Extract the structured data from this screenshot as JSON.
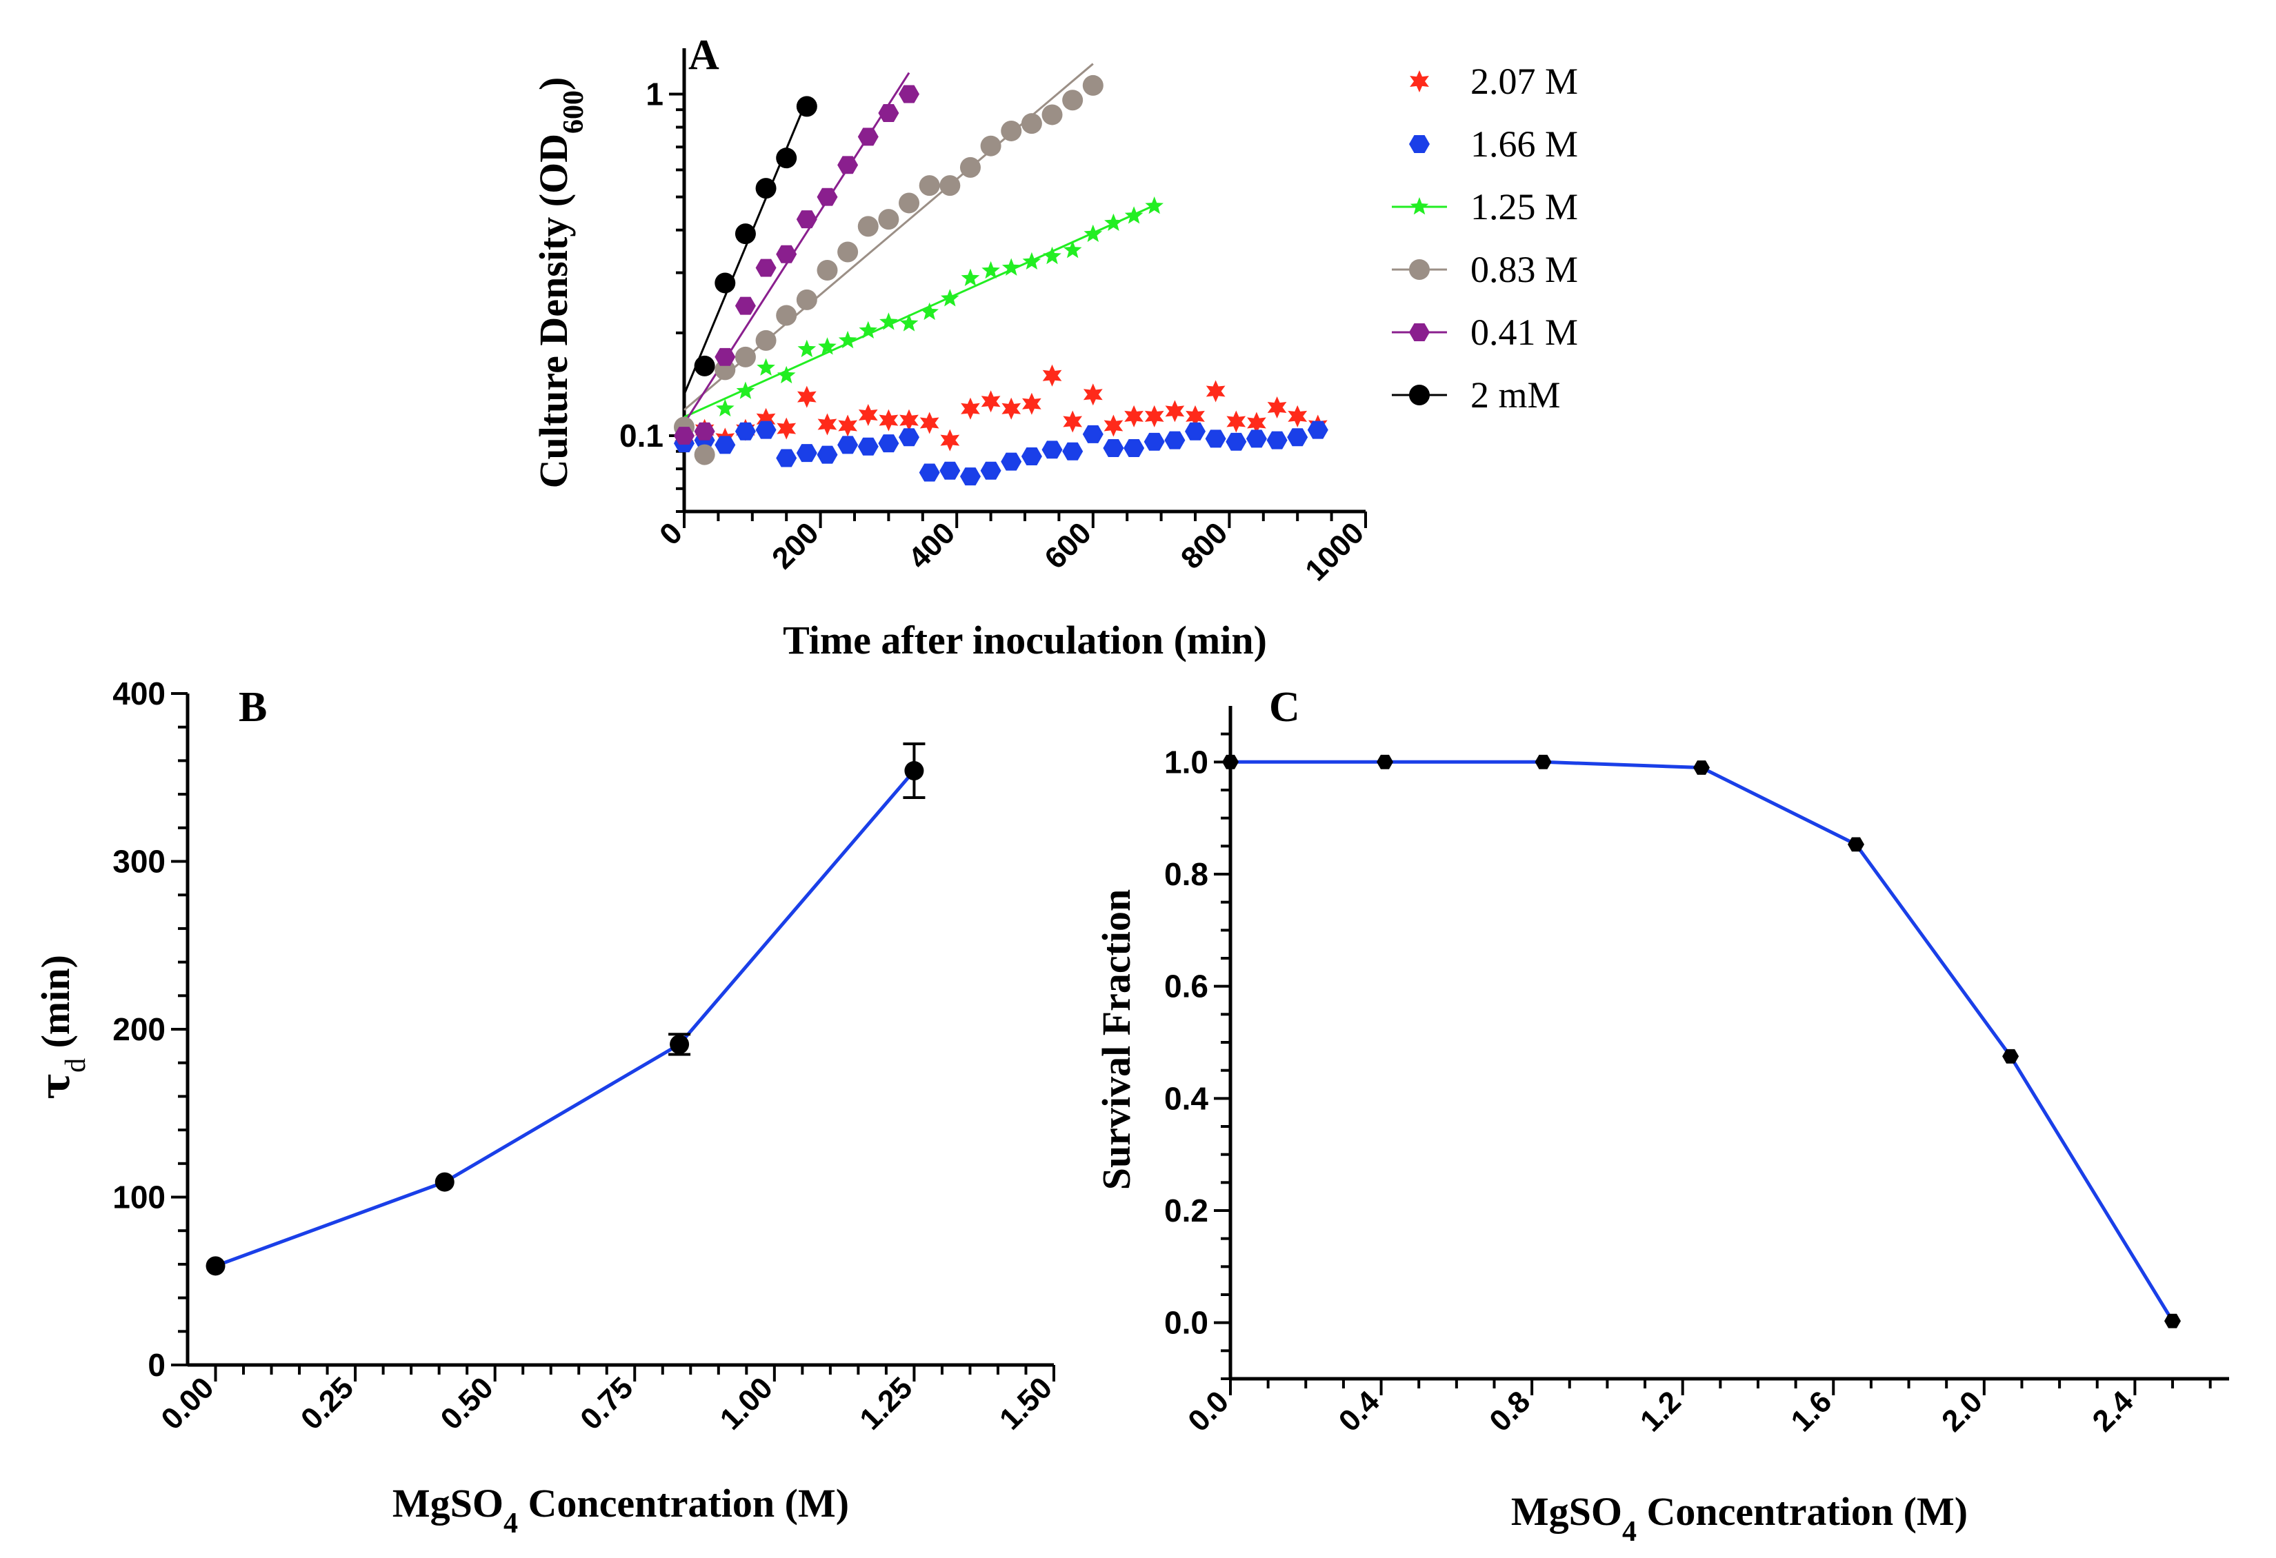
{
  "chart_data": [
    {
      "panel": "A",
      "type": "scatter",
      "yscale": "log",
      "xlabel": "Time after inoculation (min)",
      "ylabel_main": "Culture Density (OD",
      "ylabel_sub": "600",
      "ylabel_close": ")",
      "xlim": [
        0,
        1000
      ],
      "ylim": [
        0.06,
        1.3
      ],
      "xticks": [
        0,
        200,
        400,
        600,
        800,
        1000
      ],
      "yticks": [
        0.1,
        1
      ],
      "ytick_labels": [
        "0.1",
        "1"
      ],
      "series": [
        {
          "name": "2.07 M",
          "color": "#ff2a1a",
          "marker": "star",
          "fit": false,
          "x": [
            0,
            30,
            60,
            90,
            120,
            150,
            180,
            210,
            240,
            270,
            300,
            330,
            360,
            390,
            420,
            450,
            480,
            510,
            540,
            570,
            600,
            630,
            660,
            690,
            720,
            750,
            780,
            810,
            840,
            870,
            900,
            930
          ],
          "y": [
            0.1,
            0.104,
            0.098,
            0.104,
            0.112,
            0.105,
            0.13,
            0.108,
            0.107,
            0.115,
            0.111,
            0.111,
            0.109,
            0.097,
            0.12,
            0.126,
            0.12,
            0.124,
            0.15,
            0.11,
            0.132,
            0.107,
            0.114,
            0.114,
            0.118,
            0.114,
            0.135,
            0.11,
            0.109,
            0.121,
            0.114,
            0.107
          ]
        },
        {
          "name": "1.66 M",
          "color": "#1a3fe8",
          "marker": "hexagon",
          "fit": false,
          "x": [
            0,
            30,
            60,
            90,
            120,
            150,
            180,
            210,
            240,
            270,
            300,
            330,
            360,
            390,
            420,
            450,
            480,
            510,
            540,
            570,
            600,
            630,
            660,
            690,
            720,
            750,
            780,
            810,
            840,
            870,
            900,
            930
          ],
          "y": [
            0.095,
            0.097,
            0.094,
            0.103,
            0.104,
            0.086,
            0.089,
            0.088,
            0.094,
            0.093,
            0.095,
            0.099,
            0.078,
            0.079,
            0.076,
            0.079,
            0.084,
            0.087,
            0.091,
            0.09,
            0.101,
            0.092,
            0.092,
            0.096,
            0.097,
            0.103,
            0.098,
            0.096,
            0.098,
            0.097,
            0.099,
            0.104
          ]
        },
        {
          "name": "1.25 M",
          "color": "#22ee22",
          "marker": "star5",
          "fit": true,
          "x": [
            0,
            60,
            90,
            120,
            150,
            180,
            210,
            240,
            270,
            300,
            330,
            360,
            390,
            420,
            450,
            480,
            510,
            540,
            570,
            600,
            630,
            660,
            690
          ],
          "y": [
            0.105,
            0.12,
            0.135,
            0.158,
            0.15,
            0.179,
            0.182,
            0.19,
            0.203,
            0.215,
            0.213,
            0.23,
            0.252,
            0.289,
            0.304,
            0.31,
            0.323,
            0.335,
            0.349,
            0.389,
            0.419,
            0.44,
            0.47
          ]
        },
        {
          "name": "0.83 M",
          "color": "#9b8f86",
          "marker": "circle",
          "fit": true,
          "x": [
            0,
            30,
            60,
            90,
            120,
            150,
            180,
            210,
            240,
            270,
            300,
            330,
            360,
            390,
            420,
            450,
            480,
            510,
            540,
            570,
            600
          ],
          "y": [
            0.106,
            0.088,
            0.156,
            0.17,
            0.19,
            0.225,
            0.25,
            0.305,
            0.345,
            0.41,
            0.43,
            0.48,
            0.54,
            0.54,
            0.61,
            0.705,
            0.78,
            0.82,
            0.87,
            0.96,
            1.06
          ]
        },
        {
          "name": "0.41 M",
          "color": "#8a1f8e",
          "marker": "hexagon",
          "fit": true,
          "x": [
            0,
            30,
            60,
            90,
            120,
            150,
            180,
            210,
            240,
            270,
            300,
            330
          ],
          "y": [
            0.1,
            0.103,
            0.17,
            0.24,
            0.31,
            0.34,
            0.43,
            0.5,
            0.62,
            0.75,
            0.88,
            1.0
          ]
        },
        {
          "name": "2 mM",
          "color": "#000000",
          "marker": "circle",
          "fit": true,
          "x": [
            30,
            60,
            90,
            120,
            150,
            180
          ],
          "y": [
            0.16,
            0.28,
            0.39,
            0.53,
            0.65,
            0.92
          ]
        }
      ],
      "legend": [
        "2.07 M",
        "1.66 M",
        "1.25 M",
        "0.83 M",
        "0.41 M",
        "2 mM"
      ]
    },
    {
      "panel": "B",
      "type": "line",
      "xlabel_pre": "MgSO",
      "xlabel_sub": "4",
      "xlabel_post": " Concentration (M)",
      "ylabel_greek": "τ",
      "ylabel_sub": "d",
      "ylabel_post": " (min)",
      "xlim": [
        -0.05,
        1.5
      ],
      "ylim": [
        0,
        400
      ],
      "xticks": [
        0.0,
        0.25,
        0.5,
        0.75,
        1.0,
        1.25,
        1.5
      ],
      "xtick_labels": [
        "0.00",
        "0.25",
        "0.50",
        "0.75",
        "1.00",
        "1.25",
        "1.50"
      ],
      "yticks": [
        0,
        100,
        200,
        300,
        400
      ],
      "ytick_labels": [
        "0",
        "100",
        "200",
        "300",
        "400"
      ],
      "line_color": "#1a3fe8",
      "x": [
        0.0,
        0.41,
        0.83,
        1.25
      ],
      "y": [
        59,
        109,
        191,
        354
      ],
      "err": [
        2,
        3,
        6,
        16
      ]
    },
    {
      "panel": "C",
      "type": "line",
      "xlabel_pre": "MgSO",
      "xlabel_sub": "4",
      "xlabel_post": " Concentration (M)",
      "ylabel": "Survival Fraction",
      "xlim": [
        0,
        2.65
      ],
      "ylim": [
        -0.1,
        1.1
      ],
      "xticks": [
        0.0,
        0.4,
        0.8,
        1.2,
        1.6,
        2.0,
        2.4
      ],
      "xtick_labels": [
        "0.0",
        "0.4",
        "0.8",
        "1.2",
        "1.6",
        "2.0",
        "2.4"
      ],
      "yticks": [
        0.0,
        0.2,
        0.4,
        0.6,
        0.8,
        1.0
      ],
      "ytick_labels": [
        "0.0",
        "0.2",
        "0.4",
        "0.6",
        "0.8",
        "1.0"
      ],
      "line_color": "#1a3fe8",
      "x": [
        0.0,
        0.41,
        0.83,
        1.25,
        1.66,
        2.07,
        2.5
      ],
      "y": [
        1.0,
        1.0,
        1.0,
        0.99,
        0.853,
        0.475,
        0.003
      ]
    }
  ]
}
